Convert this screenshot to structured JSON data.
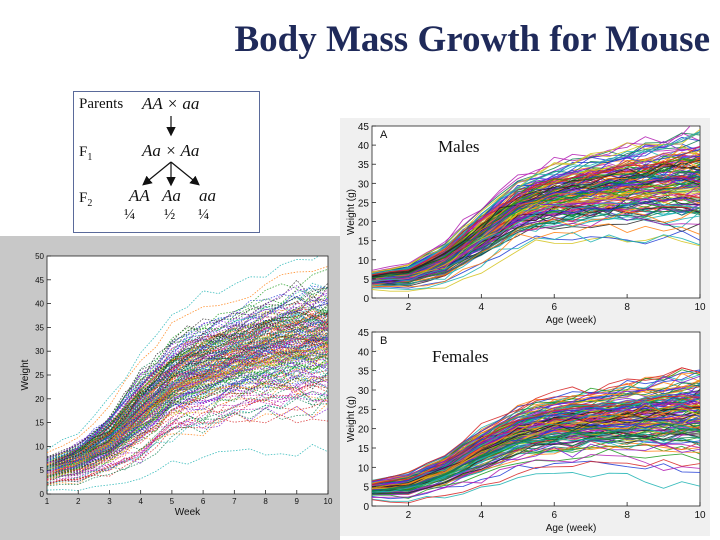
{
  "title": "Body Mass Growth for Mouse",
  "cross": {
    "parents_label": "Parents",
    "parents_cross": "AA × aa",
    "f1_label": "F",
    "f1_sub": "1",
    "f1_cross": "Aa × Aa",
    "f2_label": "F",
    "f2_sub": "2",
    "f2_genotypes": [
      "AA",
      "Aa",
      "aa"
    ],
    "f2_fractions": [
      "¼",
      "½",
      "¼"
    ]
  },
  "chart_data": [
    {
      "id": "combined",
      "type": "line",
      "title": "",
      "xlabel": "Week",
      "ylabel": "Weight",
      "xlim": [
        1,
        10
      ],
      "ylim": [
        0,
        50
      ],
      "xticks": [
        1,
        2,
        3,
        4,
        5,
        6,
        7,
        8,
        9,
        10
      ],
      "yticks": [
        0,
        5,
        10,
        15,
        20,
        25,
        30,
        35,
        40,
        45,
        50
      ],
      "style": "dotted",
      "series_count": 220,
      "mean_curve": {
        "x": [
          1,
          2,
          3,
          4,
          5,
          6,
          7,
          8,
          9,
          10
        ],
        "y": [
          5,
          7,
          11,
          17,
          23,
          26,
          28,
          30,
          31,
          32
        ]
      },
      "spread": {
        "x": [
          1,
          2,
          3,
          4,
          5,
          6,
          7,
          8,
          9,
          10
        ],
        "y": [
          1.5,
          2,
          3,
          4.5,
          5,
          5.5,
          5.5,
          6,
          6.5,
          6.5
        ]
      }
    },
    {
      "id": "males",
      "type": "line",
      "panel_letter": "A",
      "label": "Males",
      "xlabel": "Age (week)",
      "ylabel": "Weight (g)",
      "xlim": [
        1,
        10
      ],
      "ylim": [
        0,
        45
      ],
      "xticks": [
        2,
        4,
        6,
        8,
        10
      ],
      "yticks": [
        0,
        5,
        10,
        15,
        20,
        25,
        30,
        35,
        40,
        45
      ],
      "style": "solid",
      "series_count": 150,
      "mean_curve": {
        "x": [
          1,
          2,
          3,
          4,
          5,
          6,
          7,
          8,
          9,
          10
        ],
        "y": [
          5,
          6,
          10,
          17,
          24,
          27,
          28.5,
          30,
          31,
          32
        ]
      },
      "spread": {
        "x": [
          1,
          2,
          3,
          4,
          5,
          6,
          7,
          8,
          9,
          10
        ],
        "y": [
          1,
          1.5,
          2.5,
          3.5,
          4,
          4.5,
          5,
          5.5,
          6,
          6.5
        ]
      }
    },
    {
      "id": "females",
      "type": "line",
      "panel_letter": "B",
      "label": "Females",
      "xlabel": "Age (week)",
      "ylabel": "Weight (g)",
      "xlim": [
        1,
        10
      ],
      "ylim": [
        0,
        45
      ],
      "xticks": [
        2,
        4,
        6,
        8,
        10
      ],
      "yticks": [
        0,
        5,
        10,
        15,
        20,
        25,
        30,
        35,
        40,
        45
      ],
      "style": "solid",
      "series_count": 150,
      "mean_curve": {
        "x": [
          1,
          2,
          3,
          4,
          5,
          6,
          7,
          8,
          9,
          10
        ],
        "y": [
          4.5,
          5.5,
          9,
          14,
          18.5,
          20.5,
          21.5,
          22.5,
          23,
          24
        ]
      },
      "spread": {
        "x": [
          1,
          2,
          3,
          4,
          5,
          6,
          7,
          8,
          9,
          10
        ],
        "y": [
          1,
          1.5,
          2,
          3,
          3.5,
          4,
          4,
          4.5,
          5,
          5.5
        ]
      }
    }
  ],
  "colors": [
    "#1f3bd6",
    "#d62424",
    "#1a9a1a",
    "#d4c21a",
    "#b21ab2",
    "#1ab2b2",
    "#222222",
    "#ff7f0e",
    "#7f1ad6",
    "#0c7f4f"
  ]
}
